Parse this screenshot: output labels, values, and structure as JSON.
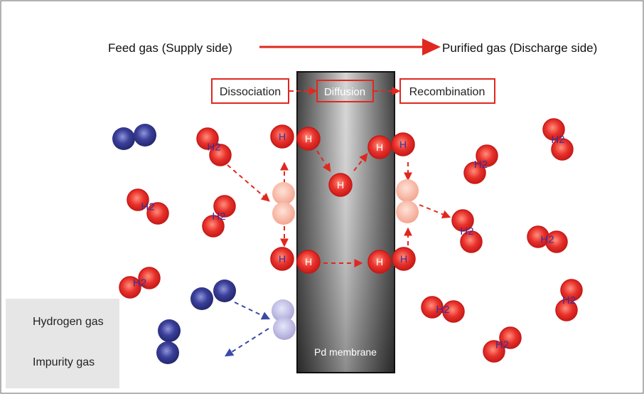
{
  "top_labels": {
    "feed": "Feed gas (Supply side)",
    "purified": "Purified gas (Discharge side)"
  },
  "process_steps": [
    "Dissociation",
    "Diffusion",
    "Recombination"
  ],
  "membrane_label": "Pd membrane",
  "hydrogen_atom_label": "H",
  "hydrogen_molecule_label": "H2",
  "legend": {
    "hydrogen": "Hydrogen gas",
    "impurity": "Impurity gas"
  },
  "colors": {
    "hydrogen": "#e8302b",
    "hydrogen_dark": "#c41a17",
    "impurity": "#3a3f9a",
    "arrow": "#e0281f",
    "impurity_arrow": "#3b4aa8",
    "membrane_dark": "#3a3a3a",
    "membrane_light": "#cfcfcf",
    "h2_text": "#3c2f9e",
    "legend_bg": "#e6e6e6"
  }
}
